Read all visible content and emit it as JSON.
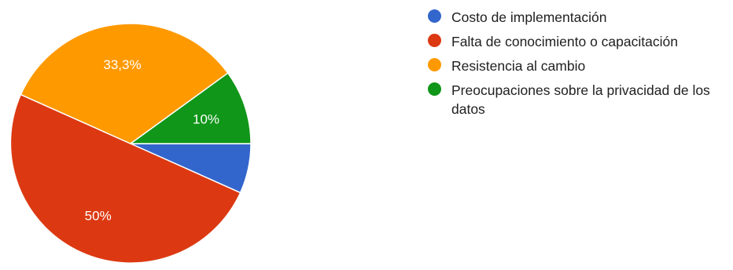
{
  "chart_data": {
    "type": "pie",
    "title": "",
    "categories": [
      "Costo de implementación",
      "Falta de conocimiento o capacitación",
      "Resistencia al cambio",
      "Preocupaciones sobre la privacidad de los datos"
    ],
    "values": [
      6.7,
      50,
      33.3,
      10
    ],
    "data_labels": [
      "",
      "50%",
      "33,3%",
      "10%"
    ],
    "colors": [
      "#3366cc",
      "#dc3912",
      "#ff9900",
      "#109618"
    ],
    "start_angle_deg": 0,
    "direction": "clockwise",
    "legend_position": "right"
  }
}
